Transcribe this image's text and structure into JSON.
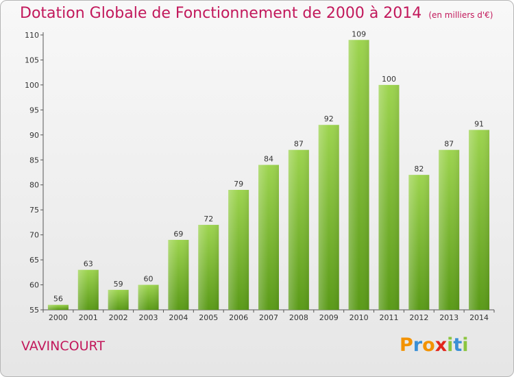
{
  "chart_data": {
    "type": "bar",
    "title": "Dotation Globale de Fonctionnement de 2000 à 2014",
    "unit": "(en milliers d'€)",
    "categories": [
      "2000",
      "2001",
      "2002",
      "2003",
      "2004",
      "2005",
      "2006",
      "2007",
      "2008",
      "2009",
      "2010",
      "2011",
      "2012",
      "2013",
      "2014"
    ],
    "values": [
      56,
      63,
      59,
      60,
      69,
      72,
      79,
      84,
      87,
      92,
      109,
      100,
      82,
      87,
      91
    ],
    "ylim": [
      55,
      110
    ],
    "yticks": [
      55,
      60,
      65,
      70,
      75,
      80,
      85,
      90,
      95,
      100,
      105,
      110
    ],
    "grid": false,
    "bar_color": "#7cbd3b"
  },
  "commune": "VAVINCOURT",
  "logo": {
    "letters": [
      "P",
      "r",
      "o",
      "x",
      "i",
      "t",
      "i"
    ],
    "colors": [
      "#f39200",
      "#3a8fd6",
      "#f39200",
      "#e2261c",
      "#8bc53f",
      "#3a8fd6",
      "#8bc53f"
    ]
  }
}
